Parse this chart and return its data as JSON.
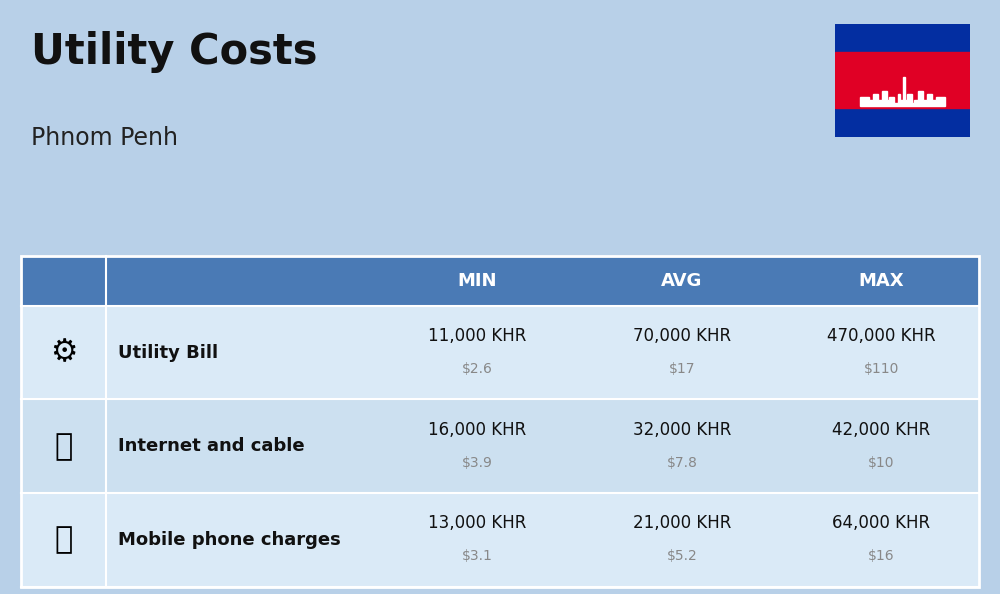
{
  "title": "Utility Costs",
  "subtitle": "Phnom Penh",
  "background_color": "#b8d0e8",
  "header_bg_color": "#4a7ab5",
  "header_text_color": "#ffffff",
  "row_bg_color_1": "#daeaf7",
  "row_bg_color_2": "#cce0f0",
  "col_headers": [
    "MIN",
    "AVG",
    "MAX"
  ],
  "rows": [
    {
      "label": "Utility Bill",
      "min_khr": "11,000 KHR",
      "min_usd": "$2.6",
      "avg_khr": "70,000 KHR",
      "avg_usd": "$17",
      "max_khr": "470,000 KHR",
      "max_usd": "$110"
    },
    {
      "label": "Internet and cable",
      "min_khr": "16,000 KHR",
      "min_usd": "$3.9",
      "avg_khr": "32,000 KHR",
      "avg_usd": "$7.8",
      "max_khr": "42,000 KHR",
      "max_usd": "$10"
    },
    {
      "label": "Mobile phone charges",
      "min_khr": "13,000 KHR",
      "min_usd": "$3.1",
      "avg_khr": "21,000 KHR",
      "avg_usd": "$5.2",
      "max_khr": "64,000 KHR",
      "max_usd": "$16"
    }
  ],
  "flag_blue": "#032ea1",
  "flag_red": "#e00025",
  "flag_white": "#ffffff"
}
